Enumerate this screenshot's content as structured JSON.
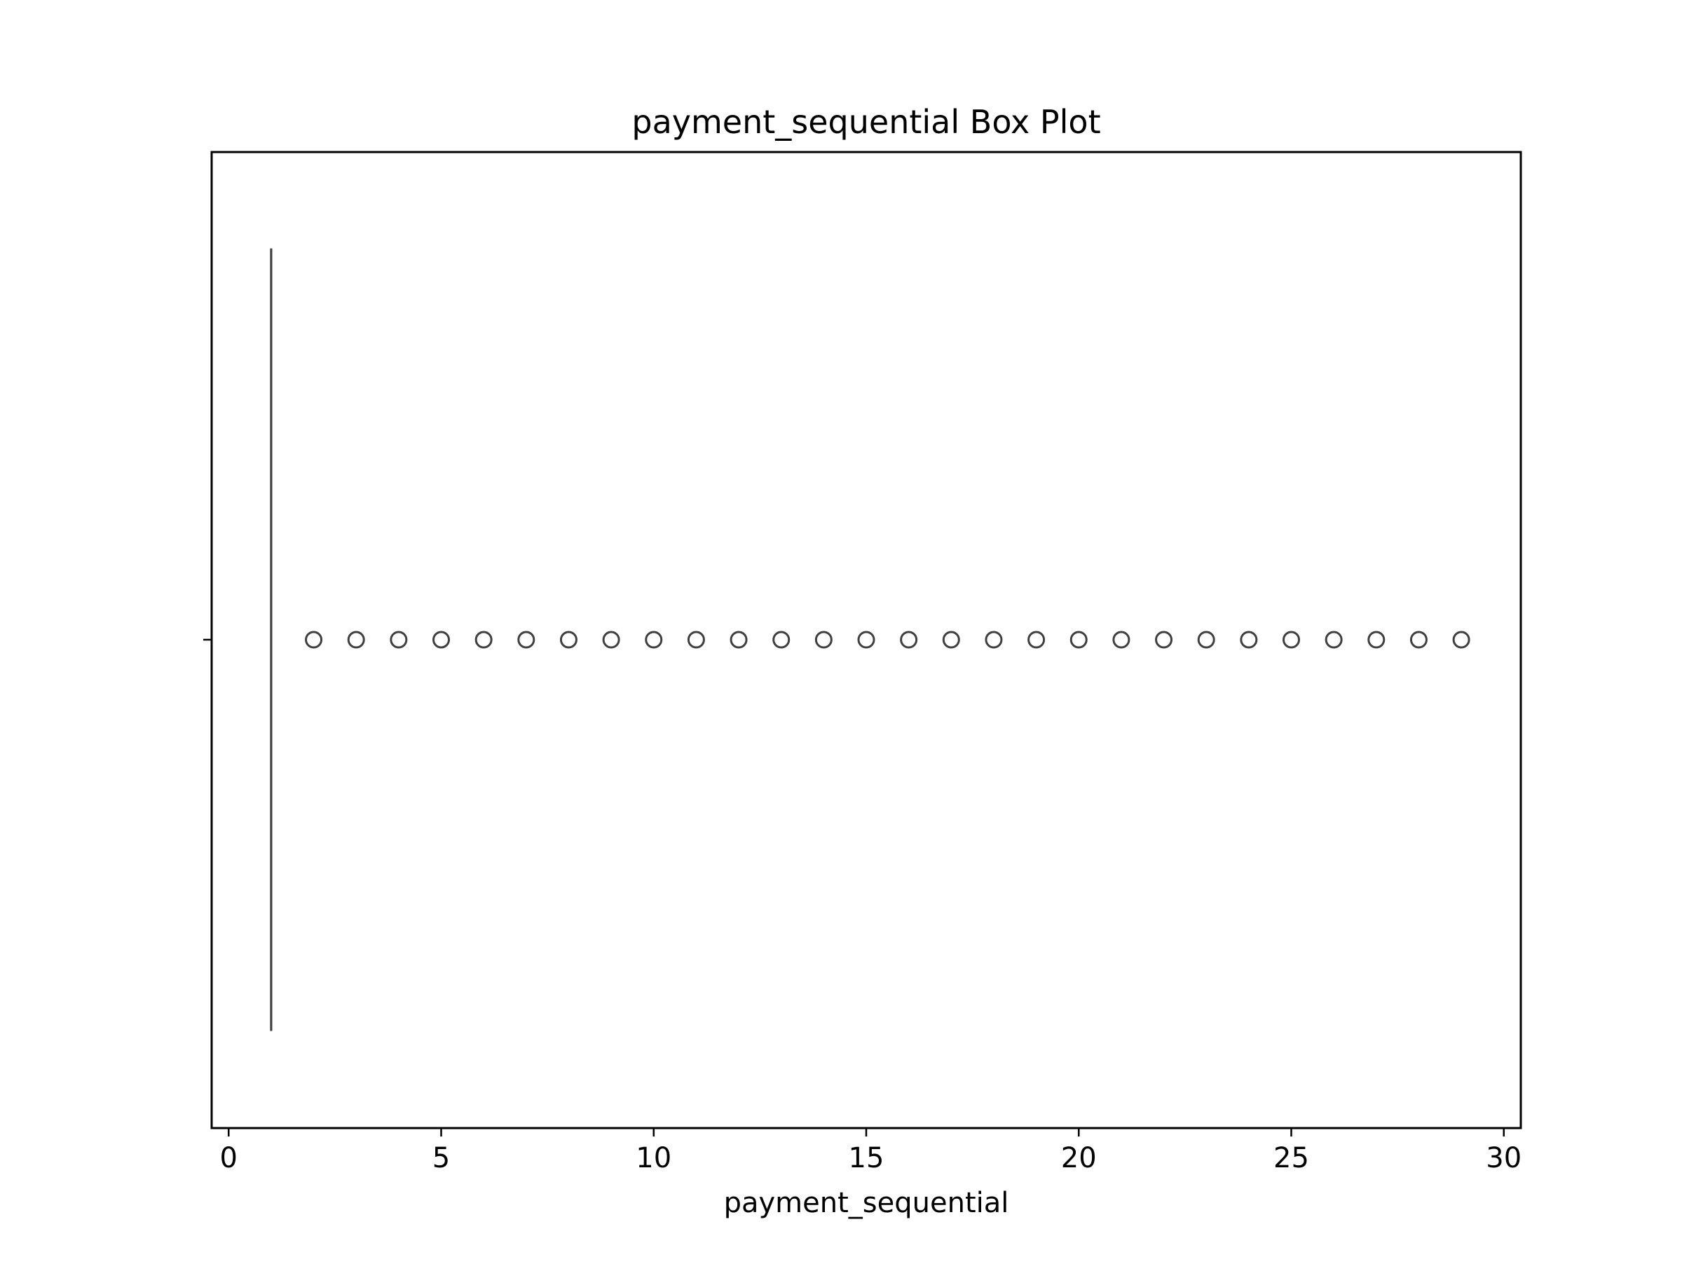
{
  "chart_data": {
    "type": "box",
    "title": "payment_sequential Box Plot",
    "xlabel": "payment_sequential",
    "ylabel": "",
    "xlim": [
      -0.4,
      30.4
    ],
    "xticks": [
      0,
      5,
      10,
      15,
      20,
      25,
      30
    ],
    "xtick_labels": [
      "0",
      "5",
      "10",
      "15",
      "20",
      "25",
      "30"
    ],
    "grid": false,
    "orientation": "horizontal",
    "series": [
      {
        "min": 1,
        "q1": 1,
        "median": 1,
        "q3": 1,
        "max": 1,
        "outliers": [
          2,
          3,
          4,
          5,
          6,
          7,
          8,
          9,
          10,
          11,
          12,
          13,
          14,
          15,
          16,
          17,
          18,
          19,
          20,
          21,
          22,
          23,
          24,
          25,
          26,
          27,
          28,
          29
        ]
      }
    ],
    "colors": {
      "box_line": "#3f3f3f",
      "outlier_edge": "#3f3f3f",
      "axis": "#000000"
    }
  }
}
